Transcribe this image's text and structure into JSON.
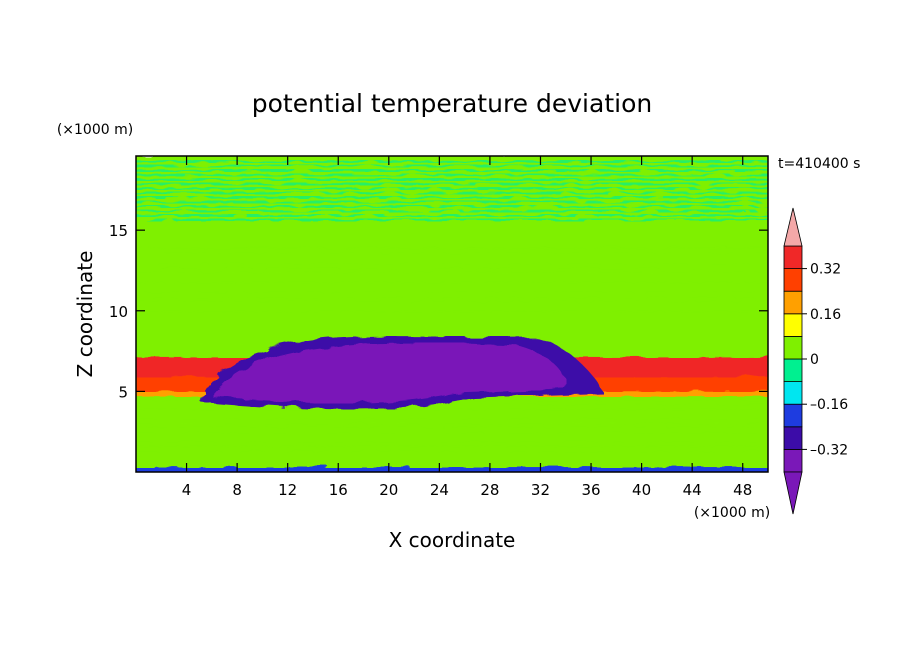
{
  "chart_data": {
    "type": "heatmap",
    "title": "potential temperature deviation",
    "xlabel": "X coordinate",
    "ylabel": "Z coordinate",
    "x_unit_label": "(×1000 m)",
    "y_unit_label": "(×1000 m)",
    "time_label": "t=410400 s",
    "xlim": [
      0,
      50
    ],
    "ylim": [
      0,
      19.6
    ],
    "x_ticks": [
      4,
      8,
      12,
      16,
      20,
      24,
      28,
      32,
      36,
      40,
      44,
      48
    ],
    "y_ticks": [
      5,
      10,
      15
    ],
    "colorbar": {
      "levels": [
        -0.4,
        -0.32,
        -0.24,
        -0.16,
        -0.08,
        0,
        0.08,
        0.16,
        0.24,
        0.32,
        0.4
      ],
      "colors": [
        "#7a18b8",
        "#3c0ca8",
        "#1e3ce0",
        "#00e6f0",
        "#00f090",
        "#7ff000",
        "#ffff00",
        "#ffa000",
        "#ff4000",
        "#f02828",
        "#f4a8a8"
      ],
      "over_color": "#f4a8a8",
      "under_color": "#7a18b8",
      "tick_labels": [
        "0.32",
        "0.16",
        "0",
        "–0.16",
        "–0.32"
      ],
      "tick_values": [
        0.32,
        0.16,
        0,
        -0.16,
        -0.32
      ]
    },
    "bands": [
      {
        "z": [
          0,
          0.4
        ],
        "value": -0.2
      },
      {
        "z": [
          0.4,
          4.8
        ],
        "value": 0
      },
      {
        "z": [
          4.8,
          5.1
        ],
        "value": 0.2
      },
      {
        "z": [
          5.1,
          6.0
        ],
        "value": 0.3
      },
      {
        "z": [
          6.0,
          7.2
        ],
        "value": 0.36
      },
      {
        "z": [
          7.2,
          8.0
        ],
        "value": 0.04
      },
      {
        "z": [
          8.0,
          9.8
        ],
        "value": 0.04
      },
      {
        "z": [
          9.8,
          14.0
        ],
        "value": 0.04
      },
      {
        "z": [
          14.0,
          19.6
        ],
        "value": 0.04
      }
    ],
    "anomaly": {
      "x_range": [
        5,
        37
      ],
      "z_range": [
        4.0,
        8.4
      ],
      "core_value": -0.36,
      "edge_value": -0.28
    }
  }
}
